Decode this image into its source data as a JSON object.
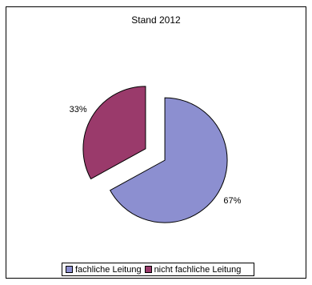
{
  "chart_data": {
    "type": "pie",
    "title": "Stand 2012",
    "categories": [
      "fachliche Leitung",
      "nicht fachliche Leitung"
    ],
    "values": [
      67,
      33
    ],
    "labels": [
      "67%",
      "33%"
    ],
    "colors": [
      "#8C8FD0",
      "#9A3A6B"
    ],
    "exploded": true,
    "legend_position": "bottom"
  }
}
